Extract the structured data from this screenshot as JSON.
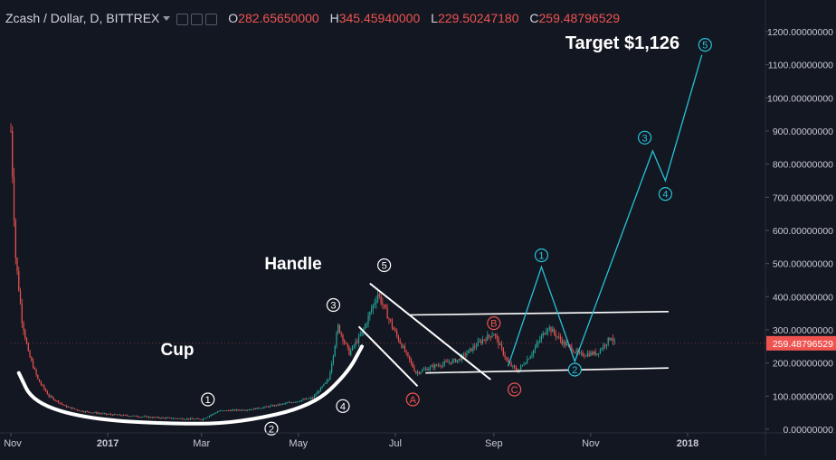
{
  "header": {
    "symbol": "Zcash / Dollar, D, BITTREX",
    "o_label": "O",
    "o_value": "282.65650000",
    "h_label": "H",
    "h_value": "345.45940000",
    "l_label": "L",
    "l_value": "229.50247180",
    "c_label": "C",
    "c_value": "259.48796529"
  },
  "annotations": {
    "cup": "Cup",
    "handle": "Handle",
    "target": "Target $1,126"
  },
  "wave_labels": {
    "w1": "1",
    "w2": "2",
    "w3": "3",
    "w4": "4",
    "w5": "5",
    "a": "A",
    "b": "B",
    "c": "C",
    "p1": "1",
    "p2": "2",
    "p3": "3",
    "p4": "4",
    "p5": "5"
  },
  "colors": {
    "background": "#131722",
    "up": "#26a69a",
    "down": "#ef5350",
    "projection": "#27c2d6",
    "axis_text": "#c8cbd3",
    "price_tag": "#ef5350"
  },
  "chart_data": {
    "type": "candlestick",
    "title": "Zcash / Dollar, D, BITTREX",
    "x_tick_labels": [
      "Nov",
      "2017",
      "Mar",
      "May",
      "Jul",
      "Sep",
      "Nov",
      "2018"
    ],
    "y_tick_labels": [
      "0.00000000",
      "100.00000000",
      "200.00000000",
      "300.00000000",
      "400.00000000",
      "500.00000000",
      "600.00000000",
      "700.00000000",
      "800.00000000",
      "900.00000000",
      "1000.00000000",
      "1100.00000000",
      "1200.00000000"
    ],
    "ylim": [
      -20,
      1270
    ],
    "last_price": "259.48796529",
    "grid": false,
    "price_path": [
      [
        "2016-11-01",
        900
      ],
      [
        "2016-11-04",
        520
      ],
      [
        "2016-11-08",
        330
      ],
      [
        "2016-11-12",
        230
      ],
      [
        "2016-11-18",
        150
      ],
      [
        "2016-11-25",
        100
      ],
      [
        "2016-12-05",
        70
      ],
      [
        "2016-12-15",
        55
      ],
      [
        "2017-01-01",
        45
      ],
      [
        "2017-02-01",
        35
      ],
      [
        "2017-03-01",
        30
      ],
      [
        "2017-03-12",
        55
      ],
      [
        "2017-04-01",
        60
      ],
      [
        "2017-04-20",
        75
      ],
      [
        "2017-05-10",
        95
      ],
      [
        "2017-05-20",
        150
      ],
      [
        "2017-05-26",
        310
      ],
      [
        "2017-06-02",
        230
      ],
      [
        "2017-06-10",
        290
      ],
      [
        "2017-06-20",
        410
      ],
      [
        "2017-06-30",
        300
      ],
      [
        "2017-07-14",
        170
      ],
      [
        "2017-07-25",
        190
      ],
      [
        "2017-08-10",
        210
      ],
      [
        "2017-08-25",
        270
      ],
      [
        "2017-09-01",
        290
      ],
      [
        "2017-09-10",
        200
      ],
      [
        "2017-09-16",
        175
      ],
      [
        "2017-09-25",
        230
      ],
      [
        "2017-10-05",
        310
      ],
      [
        "2017-10-15",
        260
      ],
      [
        "2017-10-25",
        225
      ],
      [
        "2017-11-05",
        230
      ],
      [
        "2017-11-14",
        280
      ],
      [
        "2017-11-16",
        259.49
      ]
    ],
    "cup_curve": [
      [
        "2016-11-06",
        170
      ],
      [
        "2016-11-15",
        80
      ],
      [
        "2016-12-20",
        30
      ],
      [
        "2017-02-15",
        15
      ],
      [
        "2017-03-25",
        20
      ],
      [
        "2017-05-10",
        70
      ],
      [
        "2017-06-01",
        170
      ],
      [
        "2017-06-10",
        250
      ]
    ],
    "channel_upper": [
      [
        "2017-07-10",
        345
      ],
      [
        "2017-12-20",
        355
      ]
    ],
    "channel_lower": [
      [
        "2017-07-20",
        170
      ],
      [
        "2017-12-20",
        185
      ]
    ],
    "handle_upper": [
      [
        "2017-06-15",
        440
      ],
      [
        "2017-08-30",
        150
      ]
    ],
    "handle_lower": [
      [
        "2017-06-08",
        310
      ],
      [
        "2017-07-15",
        130
      ]
    ],
    "projection": [
      [
        "2017-09-10",
        190
      ],
      [
        "2017-10-01",
        490
      ],
      [
        "2017-10-22",
        205
      ],
      [
        "2017-12-10",
        840
      ],
      [
        "2017-12-18",
        750
      ],
      [
        "2018-01-10",
        1130
      ]
    ],
    "wave_markers": [
      {
        "key": "w1",
        "date": "2017-03-05",
        "value": 90,
        "color": "#ffffff"
      },
      {
        "key": "w2",
        "date": "2017-04-14",
        "value": 2,
        "color": "#ffffff"
      },
      {
        "key": "w3",
        "date": "2017-05-23",
        "value": 375,
        "color": "#ffffff"
      },
      {
        "key": "w4",
        "date": "2017-05-29",
        "value": 70,
        "color": "#ffffff"
      },
      {
        "key": "w5",
        "date": "2017-06-24",
        "value": 495,
        "color": "#ffffff"
      },
      {
        "key": "a",
        "date": "2017-07-12",
        "value": 90,
        "color": "#ef5350"
      },
      {
        "key": "b",
        "date": "2017-09-01",
        "value": 320,
        "color": "#ef5350"
      },
      {
        "key": "c",
        "date": "2017-09-14",
        "value": 120,
        "color": "#ef5350"
      },
      {
        "key": "p1",
        "date": "2017-10-01",
        "value": 525,
        "color": "#27c2d6"
      },
      {
        "key": "p2",
        "date": "2017-10-22",
        "value": 180,
        "color": "#27c2d6"
      },
      {
        "key": "p3",
        "date": "2017-12-05",
        "value": 880,
        "color": "#27c2d6"
      },
      {
        "key": "p4",
        "date": "2017-12-18",
        "value": 710,
        "color": "#27c2d6"
      },
      {
        "key": "p5",
        "date": "2018-01-12",
        "value": 1160,
        "color": "#27c2d6"
      }
    ]
  }
}
